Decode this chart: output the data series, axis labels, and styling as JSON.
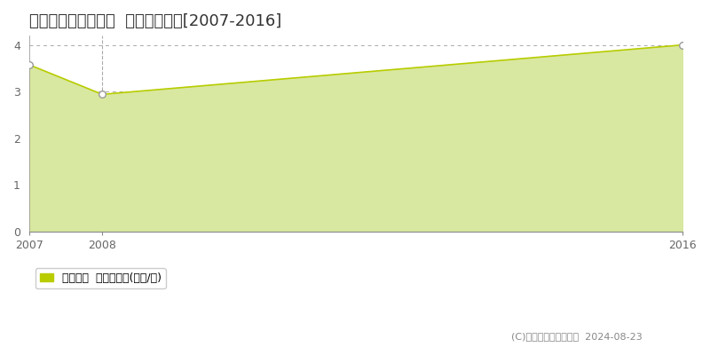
{
  "title": "旭川市工業団地４条  土地価格推移[2007-2016]",
  "years": [
    2007,
    2008,
    2016
  ],
  "values": [
    3.57,
    2.94,
    4.0
  ],
  "line_color": "#b8cc00",
  "fill_color": "#d8e8a0",
  "marker_facecolor": "white",
  "marker_edgecolor": "#999999",
  "background_color": "#ffffff",
  "grid_color": "#aaaaaa",
  "vline_color": "#aaaaaa",
  "xlim": [
    2007,
    2016
  ],
  "ylim": [
    0,
    4.2
  ],
  "yticks": [
    0,
    1,
    2,
    3,
    4
  ],
  "xticks": [
    2007,
    2008,
    2016
  ],
  "vline_x": 2008,
  "legend_label": "土地価格  平均坪単価(万円/坪)",
  "copyright_text": "(C)土地価格ドットコム  2024-08-23",
  "title_fontsize": 13,
  "tick_fontsize": 9,
  "legend_fontsize": 9,
  "copyright_fontsize": 8
}
